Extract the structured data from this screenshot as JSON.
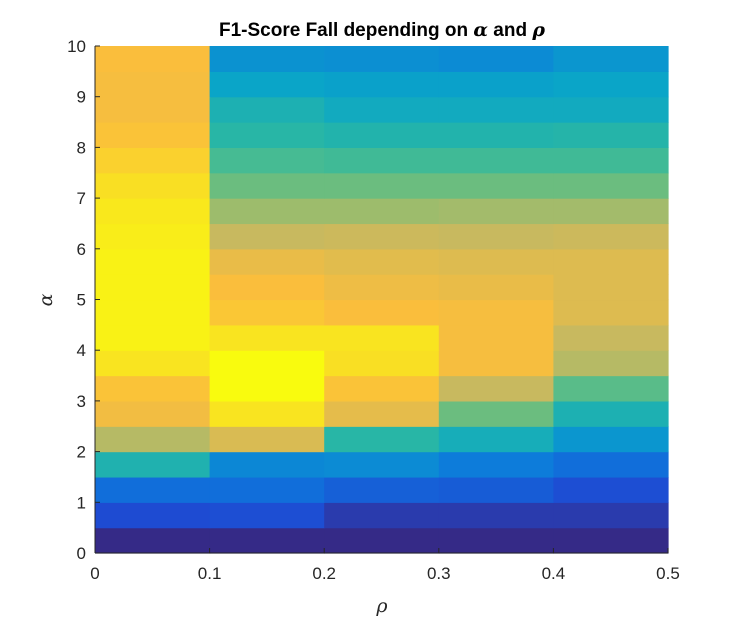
{
  "chart_data": {
    "type": "heatmap",
    "title_prefix": "F1-Score Fall depending on ",
    "title_alpha": "α",
    "title_and": " and ",
    "title_rho": "ρ",
    "xlabel": "ρ",
    "ylabel": "α",
    "xlim": [
      0,
      0.5
    ],
    "ylim": [
      0,
      10
    ],
    "x_edges": [
      0,
      0.1,
      0.2,
      0.3,
      0.4,
      0.5
    ],
    "y_edges": [
      0,
      0.5,
      1,
      1.5,
      2,
      2.5,
      3,
      3.5,
      4,
      4.5,
      5,
      5.5,
      6,
      6.5,
      7,
      7.5,
      8,
      8.5,
      9,
      9.5,
      10
    ],
    "x_ticks": [
      "0",
      "0.1",
      "0.2",
      "0.3",
      "0.4",
      "0.5"
    ],
    "y_ticks": [
      "0",
      "1",
      "2",
      "3",
      "4",
      "5",
      "6",
      "7",
      "8",
      "9",
      "10"
    ],
    "colormap": "parula",
    "grid": false,
    "values": [
      [
        0.0,
        0.0,
        0.0,
        0.0,
        0.0
      ],
      [
        0.12,
        0.13,
        0.06,
        0.06,
        0.06
      ],
      [
        0.22,
        0.22,
        0.18,
        0.17,
        0.13
      ],
      [
        0.45,
        0.29,
        0.3,
        0.26,
        0.22
      ],
      [
        0.72,
        0.79,
        0.48,
        0.42,
        0.33
      ],
      [
        0.85,
        0.95,
        0.82,
        0.6,
        0.44
      ],
      [
        0.88,
        1.0,
        0.88,
        0.75,
        0.57
      ],
      [
        0.95,
        1.0,
        0.94,
        0.86,
        0.72
      ],
      [
        0.98,
        0.95,
        0.95,
        0.86,
        0.75
      ],
      [
        0.98,
        0.89,
        0.87,
        0.86,
        0.8
      ],
      [
        0.98,
        0.87,
        0.84,
        0.83,
        0.8
      ],
      [
        0.98,
        0.83,
        0.81,
        0.8,
        0.8
      ],
      [
        0.97,
        0.75,
        0.76,
        0.75,
        0.76
      ],
      [
        0.96,
        0.68,
        0.68,
        0.69,
        0.69
      ],
      [
        0.94,
        0.6,
        0.6,
        0.6,
        0.6
      ],
      [
        0.91,
        0.54,
        0.53,
        0.53,
        0.53
      ],
      [
        0.88,
        0.48,
        0.46,
        0.46,
        0.47
      ],
      [
        0.86,
        0.44,
        0.4,
        0.4,
        0.4
      ],
      [
        0.86,
        0.37,
        0.36,
        0.36,
        0.37
      ],
      [
        0.87,
        0.32,
        0.31,
        0.3,
        0.33
      ]
    ]
  }
}
